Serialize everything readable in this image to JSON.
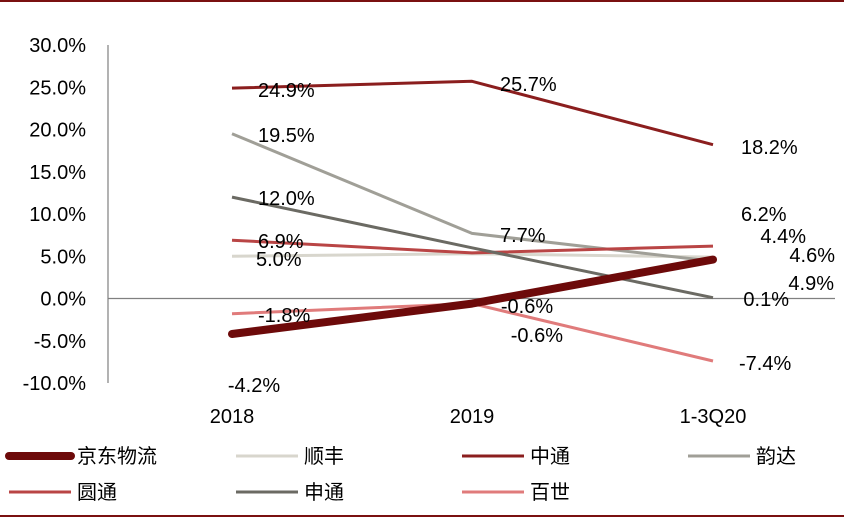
{
  "chart_data": {
    "type": "line",
    "categories": [
      "2018",
      "2019",
      "1-3Q20"
    ],
    "ylim": [
      -10,
      30
    ],
    "y_ticks": [
      "-10.0%",
      "-5.0%",
      "0.0%",
      "5.0%",
      "10.0%",
      "15.0%",
      "20.0%",
      "25.0%",
      "30.0%"
    ],
    "y_tick_values": [
      -10,
      -5,
      0,
      5,
      10,
      15,
      20,
      25,
      30
    ],
    "grid": false,
    "legend_position": "bottom",
    "series": [
      {
        "name": "京东物流",
        "values": [
          -4.2,
          -0.6,
          4.6
        ],
        "labels": [
          "-4.2%",
          "-0.6%",
          "4.6%"
        ],
        "color": "#6d0a0a"
      },
      {
        "name": "顺丰",
        "values": [
          5.0,
          5.3,
          4.9
        ],
        "labels": [
          "5.0%",
          "",
          "4.9%"
        ],
        "color": "#d8d6cd"
      },
      {
        "name": "中通",
        "values": [
          24.9,
          25.7,
          18.2
        ],
        "labels": [
          "24.9%",
          "25.7%",
          "18.2%"
        ],
        "color": "#8b1e1e"
      },
      {
        "name": "韵达",
        "values": [
          19.5,
          7.7,
          4.4
        ],
        "labels": [
          "19.5%",
          "7.7%",
          "4.4%"
        ],
        "color": "#a09f97"
      },
      {
        "name": "圆通",
        "values": [
          6.9,
          5.4,
          6.2
        ],
        "labels": [
          "6.9%",
          "",
          "6.2%"
        ],
        "color": "#b94545"
      },
      {
        "name": "申通",
        "values": [
          12.0,
          6.0,
          0.1
        ],
        "labels": [
          "12.0%",
          "",
          "0.1%"
        ],
        "color": "#6b6a63"
      },
      {
        "name": "百世",
        "values": [
          -1.8,
          -0.6,
          -7.4
        ],
        "labels": [
          "-1.8%",
          "-0.6%",
          "-7.4%"
        ],
        "color": "#e07b7b"
      }
    ]
  },
  "style": {
    "frame_color": "#7a1010",
    "axis_color": "#808080"
  }
}
